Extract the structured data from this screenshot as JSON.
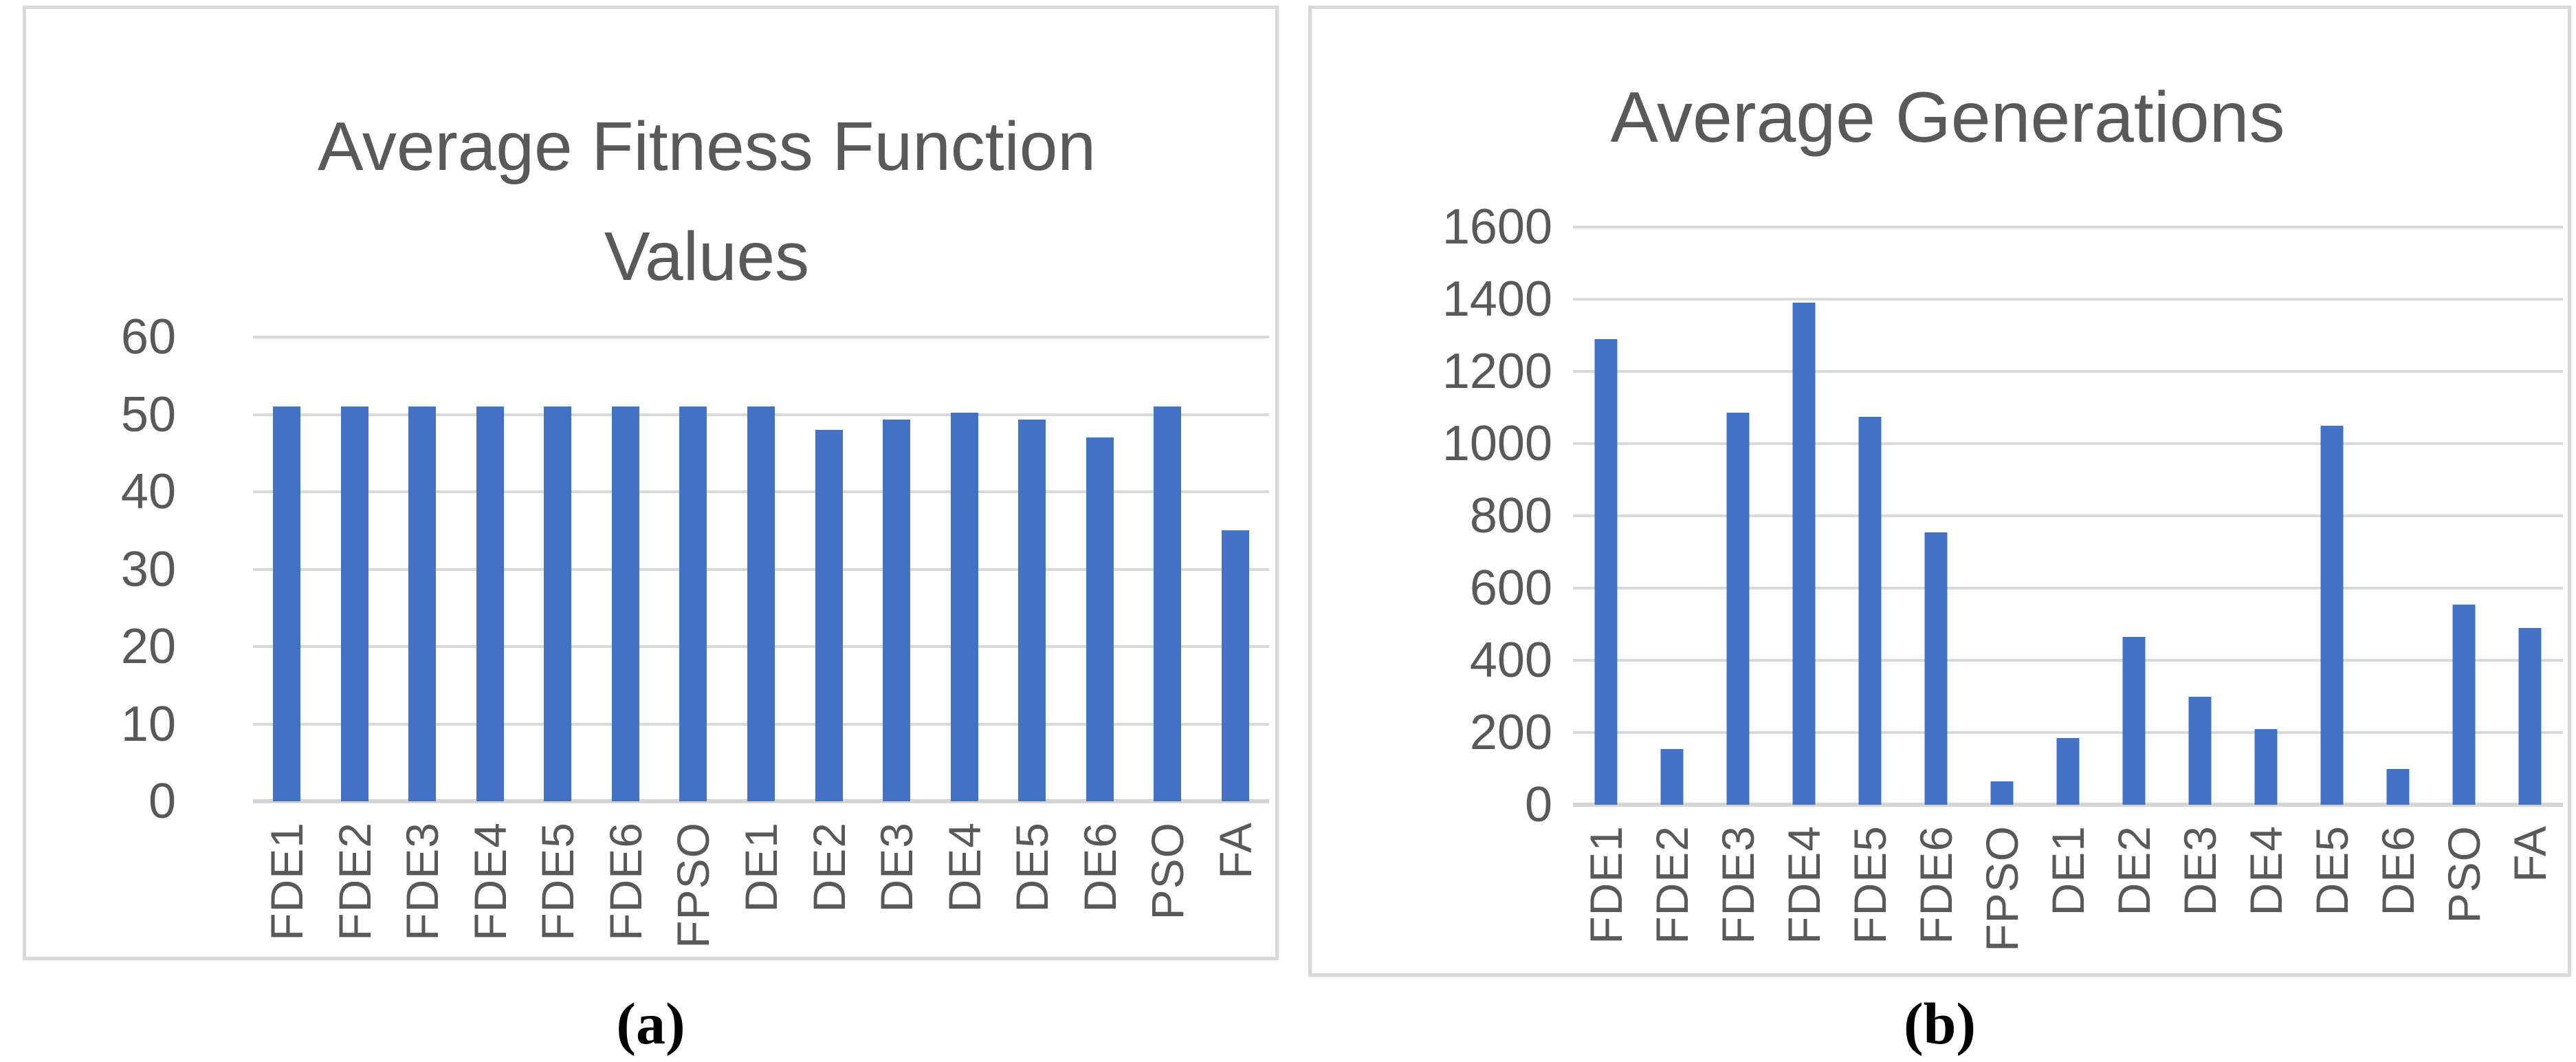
{
  "figure": {
    "background": "#ffffff",
    "captions": {
      "a": "(a)",
      "b": "(b)"
    },
    "colors": {
      "bar": "#4472C4",
      "gridline": "#d9d9d9",
      "axis_line": "#d4d4d4",
      "text": "#595959",
      "panel_border": "#d9d9d9",
      "caption_text": "#000000"
    }
  },
  "chart_data": [
    {
      "id": "average-fitness-function-values",
      "type": "bar",
      "title": "Average Fitness Function Values",
      "title_lines": [
        "Average Fitness Function",
        "Values"
      ],
      "categories": [
        "FDE1",
        "FDE2",
        "FDE3",
        "FDE4",
        "FDE5",
        "FDE6",
        "FPSO",
        "DE1",
        "DE2",
        "DE3",
        "DE4",
        "DE5",
        "DE6",
        "PSO",
        "FA"
      ],
      "values": [
        51,
        51,
        51,
        51,
        51,
        51,
        51,
        51,
        48,
        49.3,
        50.2,
        49.3,
        47,
        51,
        35
      ],
      "xlabel": "",
      "ylabel": "",
      "ylim": [
        0,
        60
      ],
      "yticks": [
        0,
        10,
        20,
        30,
        40,
        50,
        60
      ],
      "grid": true,
      "legend": "none",
      "bar_color": "#4472C4"
    },
    {
      "id": "average-generations",
      "type": "bar",
      "title": "Average Generations",
      "title_lines": [
        "Average Generations"
      ],
      "categories": [
        "FDE1",
        "FDE2",
        "FDE3",
        "FDE4",
        "FDE5",
        "FDE6",
        "FPSO",
        "DE1",
        "DE2",
        "DE3",
        "DE4",
        "DE5",
        "DE6",
        "PSO",
        "FA"
      ],
      "values": [
        1290,
        155,
        1085,
        1390,
        1075,
        755,
        65,
        185,
        465,
        300,
        210,
        1050,
        100,
        555,
        490
      ],
      "xlabel": "",
      "ylabel": "",
      "ylim": [
        0,
        1600
      ],
      "yticks": [
        0,
        200,
        400,
        600,
        800,
        1000,
        1200,
        1400,
        1600
      ],
      "grid": true,
      "legend": "none",
      "bar_color": "#4472C4"
    }
  ]
}
